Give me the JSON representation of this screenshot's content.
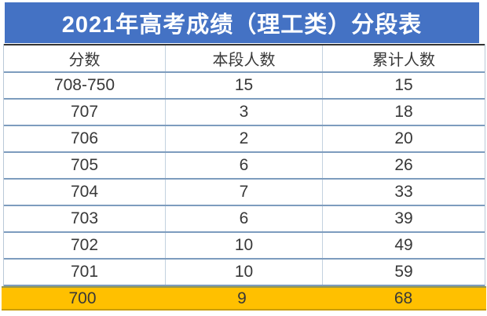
{
  "title": "2021年高考成绩（理工类）分段表",
  "colors": {
    "title_bg": "#4472C4",
    "title_text": "#FFFFFF",
    "highlight_row_bg": "#FFC000",
    "row_border": "#7D9CBE",
    "column_border": "#C3D1DF",
    "header_top_border": "#333333",
    "cell_text": "#383838"
  },
  "table": {
    "headers": [
      "分数",
      "本段人数",
      "累计人数"
    ],
    "rows": [
      {
        "score": "708-750",
        "segment": "15",
        "cumulative": "15"
      },
      {
        "score": "707",
        "segment": "3",
        "cumulative": "18"
      },
      {
        "score": "706",
        "segment": "2",
        "cumulative": "20"
      },
      {
        "score": "705",
        "segment": "6",
        "cumulative": "26"
      },
      {
        "score": "704",
        "segment": "7",
        "cumulative": "33"
      },
      {
        "score": "703",
        "segment": "6",
        "cumulative": "39"
      },
      {
        "score": "702",
        "segment": "10",
        "cumulative": "49"
      },
      {
        "score": "701",
        "segment": "10",
        "cumulative": "59"
      },
      {
        "score": "700",
        "segment": "9",
        "cumulative": "68"
      }
    ],
    "highlighted_score": "700"
  },
  "chart_data": {
    "type": "table",
    "title": "2021年高考成绩（理工类）分段表",
    "columns": [
      "分数",
      "本段人数",
      "累计人数"
    ],
    "rows": [
      [
        "708-750",
        15,
        15
      ],
      [
        "707",
        3,
        18
      ],
      [
        "706",
        2,
        20
      ],
      [
        "705",
        6,
        26
      ],
      [
        "704",
        7,
        33
      ],
      [
        "703",
        6,
        39
      ],
      [
        "702",
        10,
        49
      ],
      [
        "701",
        10,
        59
      ],
      [
        "700",
        9,
        68
      ]
    ],
    "highlighted_row": "700",
    "notes": "Last row (700) highlighted with gold background"
  }
}
